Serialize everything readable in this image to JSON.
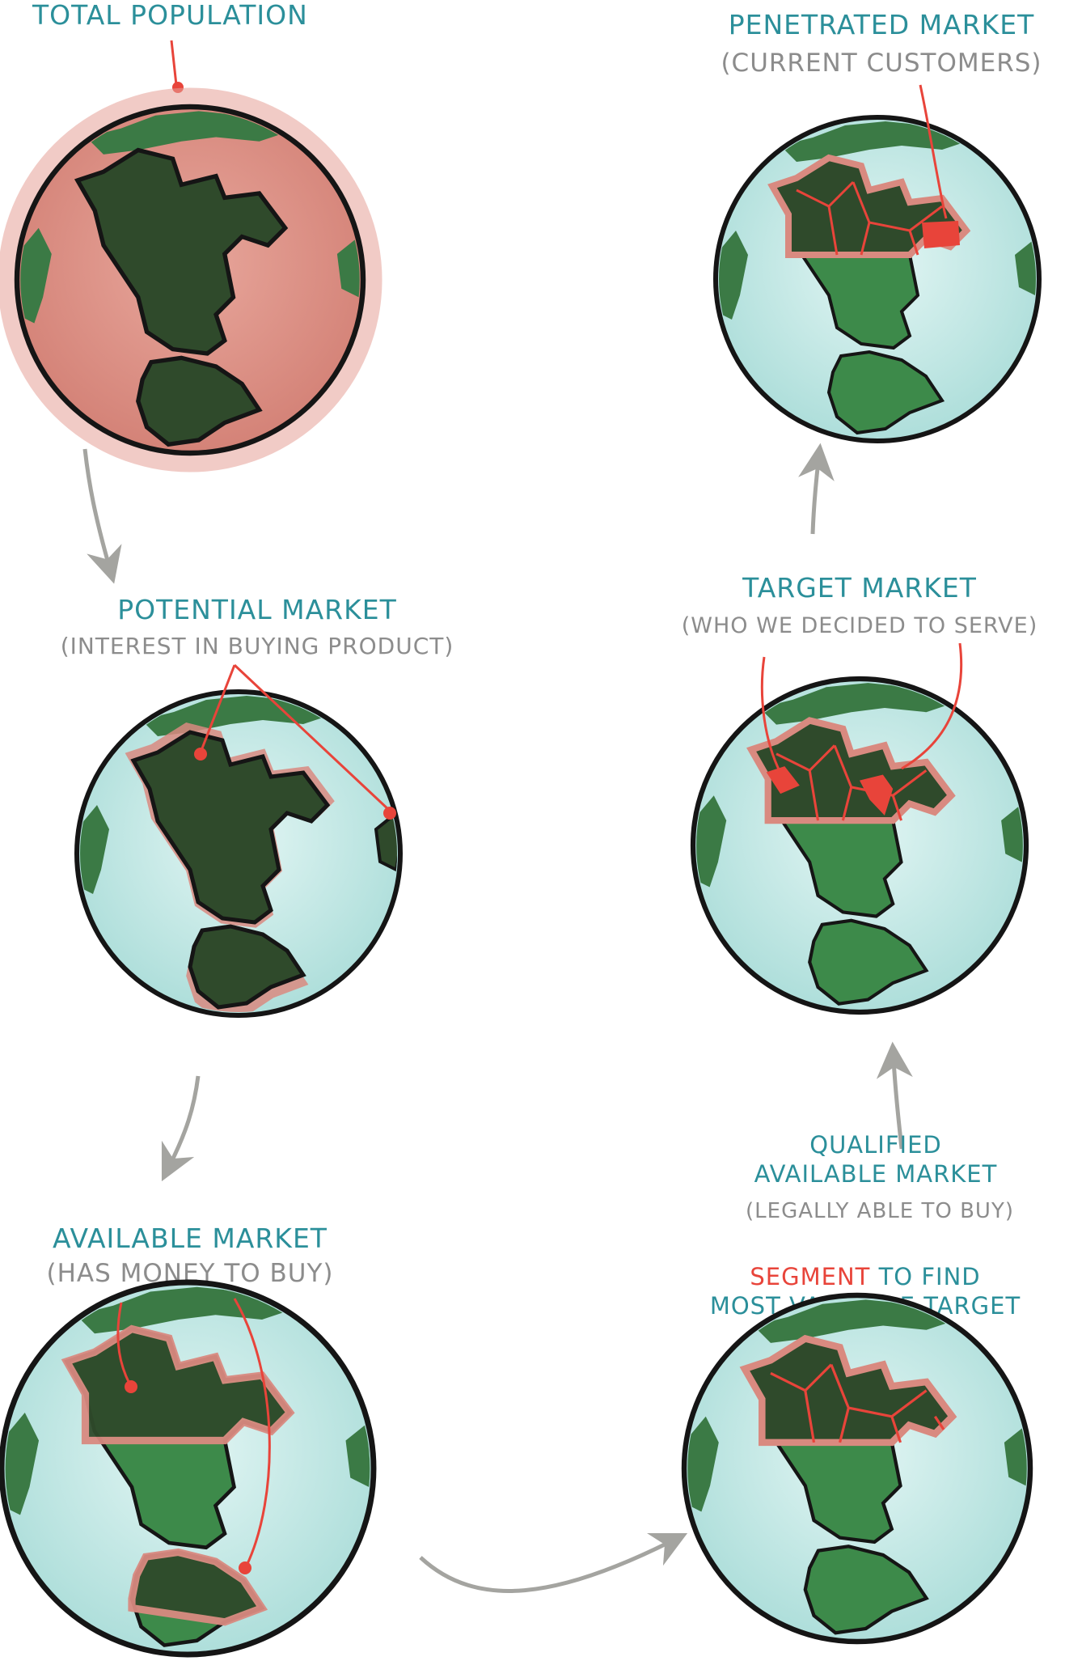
{
  "stages": {
    "total_population": {
      "title": "TOTAL POPULATION"
    },
    "potential_market": {
      "title": "POTENTIAL MARKET",
      "subtitle": "(INTEREST IN BUYING PRODUCT)"
    },
    "available_market": {
      "title": "AVAILABLE MARKET",
      "subtitle": "(HAS MONEY TO BUY)"
    },
    "segment": {
      "highlight": "SEGMENT",
      "title_rest": " TO FIND",
      "title_line2": "MOST VALUABLE TARGET"
    },
    "qualified_available_market": {
      "title_line1": "QUALIFIED",
      "title_line2": "AVAILABLE MARKET",
      "subtitle": "(LEGALLY ABLE TO BUY)"
    },
    "target_market": {
      "title": "TARGET MARKET",
      "subtitle": "(WHO WE DECIDED TO SERVE)"
    },
    "penetrated_market": {
      "title": "PENETRATED MARKET",
      "subtitle": "(CURRENT CUSTOMERS)"
    }
  },
  "colors": {
    "label": "#2b8f9a",
    "sublabel": "#8c8c8c",
    "highlight": "#e8443a",
    "ocean": "#cfeeed",
    "land": "#3b7a45",
    "land_dark": "#2c4b2a",
    "outline": "#1a1a1a",
    "arrow": "#a4a4a0"
  }
}
